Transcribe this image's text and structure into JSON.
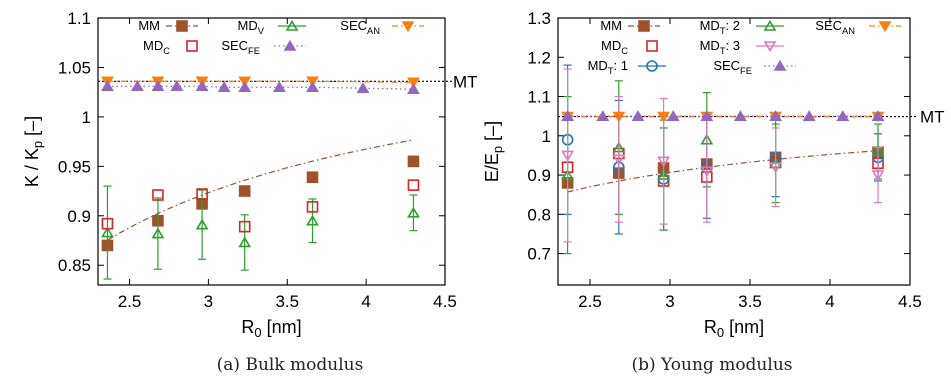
{
  "chart_data": [
    {
      "type": "scatter",
      "panel": "a",
      "caption": "(a) Bulk modulus",
      "xlabel": "R",
      "xlabel_sub": "0",
      "xlabel_unit": " [nm]",
      "ylabel": "K / K",
      "ylabel_sub": "p",
      "ylabel_unit": " [–]",
      "xlim": [
        2.3,
        4.5
      ],
      "ylim": [
        0.83,
        1.1
      ],
      "xticks": [
        2.5,
        3,
        3.5,
        4,
        4.5
      ],
      "xtick_labels": [
        "2.5",
        "3",
        "3.5",
        "4",
        "4.5"
      ],
      "yticks": [
        0.85,
        0.9,
        0.95,
        1.0,
        1.05,
        1.1
      ],
      "ytick_labels": [
        "0.85",
        "0.9",
        "0.95",
        "1",
        "1.05",
        "1.1"
      ],
      "reference_line": {
        "label": "MT",
        "y": 1.036
      },
      "series": [
        {
          "name": "MM",
          "sub": "",
          "color": "#a0522d",
          "marker": "square-filled",
          "line": "dashdot",
          "x": [
            2.36,
            2.68,
            2.96,
            3.23,
            3.66,
            4.3
          ],
          "y": [
            0.87,
            0.895,
            0.912,
            0.925,
            0.939,
            0.955
          ],
          "fit": {
            "a": 1.1,
            "b": -0.53,
            "from": 2.36,
            "to": 4.3
          }
        },
        {
          "name": "MD",
          "sub": "V",
          "color": "#2ca02c",
          "marker": "triangle-open",
          "line": "none",
          "x": [
            2.36,
            2.68,
            2.96,
            3.23,
            3.66,
            4.3
          ],
          "y": [
            0.883,
            0.882,
            0.891,
            0.873,
            0.895,
            0.903
          ],
          "err": [
            0.047,
            0.036,
            0.035,
            0.028,
            0.022,
            0.018
          ]
        },
        {
          "name": "SEC",
          "sub": "AN",
          "color": "#ff7f0e",
          "marker": "triangle-down-filled",
          "line": "dashdot",
          "x": [
            2.36,
            2.68,
            2.96,
            3.23,
            3.66,
            4.3
          ],
          "y": [
            1.036,
            1.036,
            1.036,
            1.036,
            1.036,
            1.035
          ]
        },
        {
          "name": "MD",
          "sub": "C",
          "color": "#d62728",
          "marker": "square-open",
          "line": "none",
          "x": [
            2.36,
            2.68,
            2.96,
            3.23,
            3.66,
            4.3
          ],
          "y": [
            0.892,
            0.921,
            0.922,
            0.889,
            0.909,
            0.931
          ]
        },
        {
          "name": "SEC",
          "sub": "FE",
          "color": "#9467bd",
          "marker": "triangle-filled",
          "line": "dotted",
          "x": [
            2.36,
            2.55,
            2.68,
            2.8,
            2.96,
            3.1,
            3.23,
            3.45,
            3.66,
            3.98,
            4.3
          ],
          "y": [
            1.031,
            1.031,
            1.031,
            1.031,
            1.031,
            1.03,
            1.03,
            1.03,
            1.03,
            1.029,
            1.028
          ]
        }
      ]
    },
    {
      "type": "scatter",
      "panel": "b",
      "caption": "(b) Young modulus",
      "xlabel": "R",
      "xlabel_sub": "0",
      "xlabel_unit": " [nm]",
      "ylabel": "E/E",
      "ylabel_sub": "p",
      "ylabel_unit": " [–]",
      "xlim": [
        2.3,
        4.5
      ],
      "ylim": [
        0.62,
        1.3
      ],
      "xticks": [
        2.5,
        3,
        3.5,
        4,
        4.5
      ],
      "xtick_labels": [
        "2.5",
        "3",
        "3.5",
        "4",
        "4.5"
      ],
      "yticks": [
        0.7,
        0.8,
        0.9,
        1.0,
        1.1,
        1.2,
        1.3
      ],
      "ytick_labels": [
        "0.7",
        "0.8",
        "0.9",
        "1",
        "1.1",
        "1.2",
        "1.3"
      ],
      "reference_line": {
        "label": "MT",
        "y": 1.049
      },
      "series": [
        {
          "name": "MM",
          "sub": "",
          "color": "#a0522d",
          "marker": "square-filled",
          "line": "dashdot",
          "x": [
            2.36,
            2.68,
            2.96,
            3.23,
            3.66,
            4.3
          ],
          "y": [
            0.88,
            0.905,
            0.918,
            0.928,
            0.945,
            0.958
          ],
          "fit": {
            "a": 1.09,
            "b": -0.55,
            "from": 2.36,
            "to": 4.3
          }
        },
        {
          "name": "MD",
          "sub": "C",
          "color": "#d62728",
          "marker": "square-open",
          "line": "none",
          "x": [
            2.36,
            2.68,
            2.96,
            3.23,
            3.66,
            4.3
          ],
          "y": [
            0.92,
            0.955,
            0.885,
            0.895,
            0.932,
            0.93
          ]
        },
        {
          "name": "MD",
          "sub": "T",
          "suffix": ": 1",
          "color": "#1f77b4",
          "marker": "circle-open",
          "line": "none",
          "x": [
            2.36,
            2.68,
            2.96,
            3.23,
            3.66,
            4.3
          ],
          "y": [
            0.99,
            0.92,
            0.89,
            0.92,
            0.945,
            0.945
          ],
          "err": [
            0.19,
            0.17,
            0.13,
            0.13,
            0.1,
            0.06
          ]
        },
        {
          "name": "MD",
          "sub": "T",
          "suffix": ": 2",
          "color": "#2ca02c",
          "marker": "triangle-open",
          "line": "none",
          "x": [
            2.36,
            2.68,
            2.96,
            3.23,
            3.66,
            4.3
          ],
          "y": [
            0.9,
            0.97,
            0.9,
            0.99,
            0.93,
            0.96
          ],
          "err": [
            0.2,
            0.17,
            0.14,
            0.12,
            0.1,
            0.07
          ]
        },
        {
          "name": "MD",
          "sub": "T",
          "suffix": ": 3",
          "color": "#e377c2",
          "marker": "triangle-down-open",
          "line": "none",
          "x": [
            2.36,
            2.68,
            2.96,
            3.23,
            3.66,
            4.3
          ],
          "y": [
            0.95,
            0.94,
            0.935,
            0.91,
            0.92,
            0.9
          ],
          "err": [
            0.22,
            0.16,
            0.16,
            0.13,
            0.1,
            0.07
          ]
        },
        {
          "name": "SEC",
          "sub": "AN",
          "color": "#ff7f0e",
          "marker": "triangle-down-filled",
          "line": "dashdot",
          "x": [
            2.36,
            2.68,
            2.96,
            3.23,
            3.66,
            4.3
          ],
          "y": [
            1.049,
            1.049,
            1.049,
            1.049,
            1.049,
            1.049
          ]
        },
        {
          "name": "SEC",
          "sub": "FE",
          "color": "#9467bd",
          "marker": "triangle-filled",
          "line": "dotted",
          "x": [
            2.36,
            2.58,
            2.8,
            3.02,
            3.23,
            3.44,
            3.66,
            3.87,
            4.08,
            4.3
          ],
          "y": [
            1.05,
            1.05,
            1.05,
            1.05,
            1.05,
            1.05,
            1.05,
            1.05,
            1.05,
            1.05
          ]
        }
      ]
    }
  ]
}
